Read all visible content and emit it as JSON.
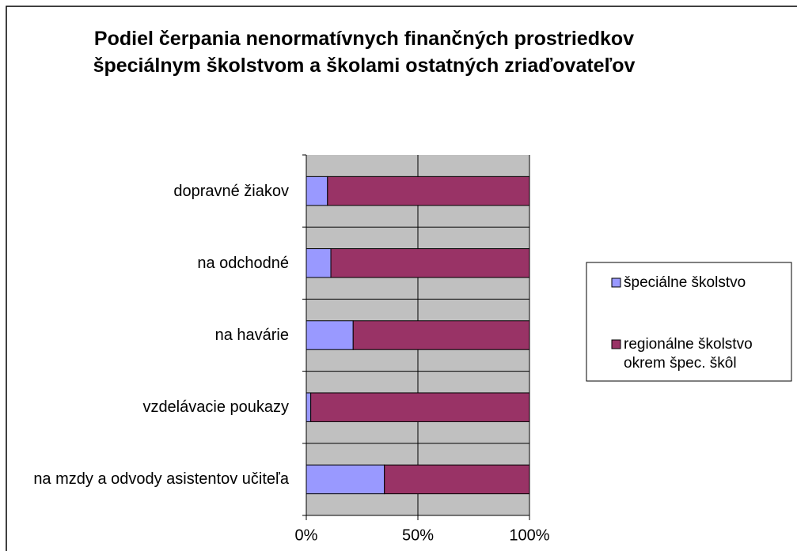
{
  "chart_data": {
    "type": "bar",
    "orientation": "horizontal",
    "stacked": true,
    "title": "Podiel čerpania nenormatívnych finančných prostriedkov špeciálnym školstvom a školami ostatných zriaďovateľov",
    "categories": [
      "dopravné žiakov",
      "na odchodné",
      "na havárie",
      "vzdelávacie poukazy",
      "na mzdy a odvody asistentov učiteľa"
    ],
    "series": [
      {
        "name": "špeciálne školstvo",
        "color": "#9999ff",
        "values": [
          9.5,
          11,
          21,
          2,
          35
        ]
      },
      {
        "name": "regionálne školstvo okrem špec. škôl",
        "color": "#993366",
        "values": [
          90.5,
          89,
          79,
          98,
          65
        ]
      }
    ],
    "xlim": [
      0,
      100
    ],
    "xticks": [
      {
        "value": 0,
        "label": "0%"
      },
      {
        "value": 50,
        "label": "50%"
      },
      {
        "value": 100,
        "label": "100%"
      }
    ],
    "grid": true,
    "legend": "right"
  }
}
